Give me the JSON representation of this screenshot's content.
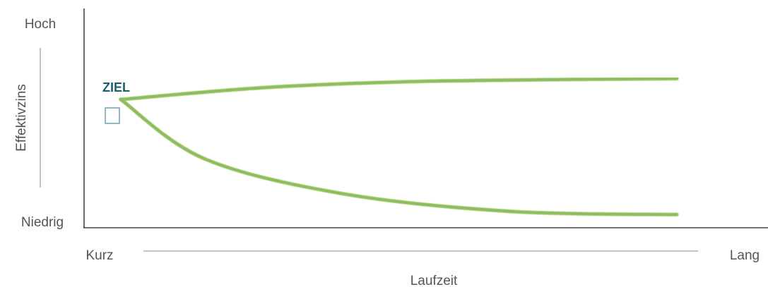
{
  "chart_data": {
    "type": "line",
    "x_axis": {
      "label": "Laufzeit",
      "min_label": "Kurz",
      "max_label": "Lang"
    },
    "y_axis": {
      "label": "Effektivzins",
      "max_label": "Hoch",
      "min_label": "Niedrig"
    },
    "annotation": {
      "label": "ZIEL"
    },
    "series": [
      {
        "values": [
          [
            0.0,
            0.585
          ],
          [
            0.25,
            0.638
          ],
          [
            0.5,
            0.665
          ],
          [
            0.75,
            0.675
          ],
          [
            1.0,
            0.68
          ]
        ],
        "color": "#8fbd5c"
      },
      {
        "values": [
          [
            0.0,
            0.585
          ],
          [
            0.15,
            0.315
          ],
          [
            0.4,
            0.155
          ],
          [
            0.7,
            0.075
          ],
          [
            1.0,
            0.06
          ]
        ],
        "color": "#8fbd5c"
      }
    ],
    "grid": false,
    "legend": "none"
  }
}
